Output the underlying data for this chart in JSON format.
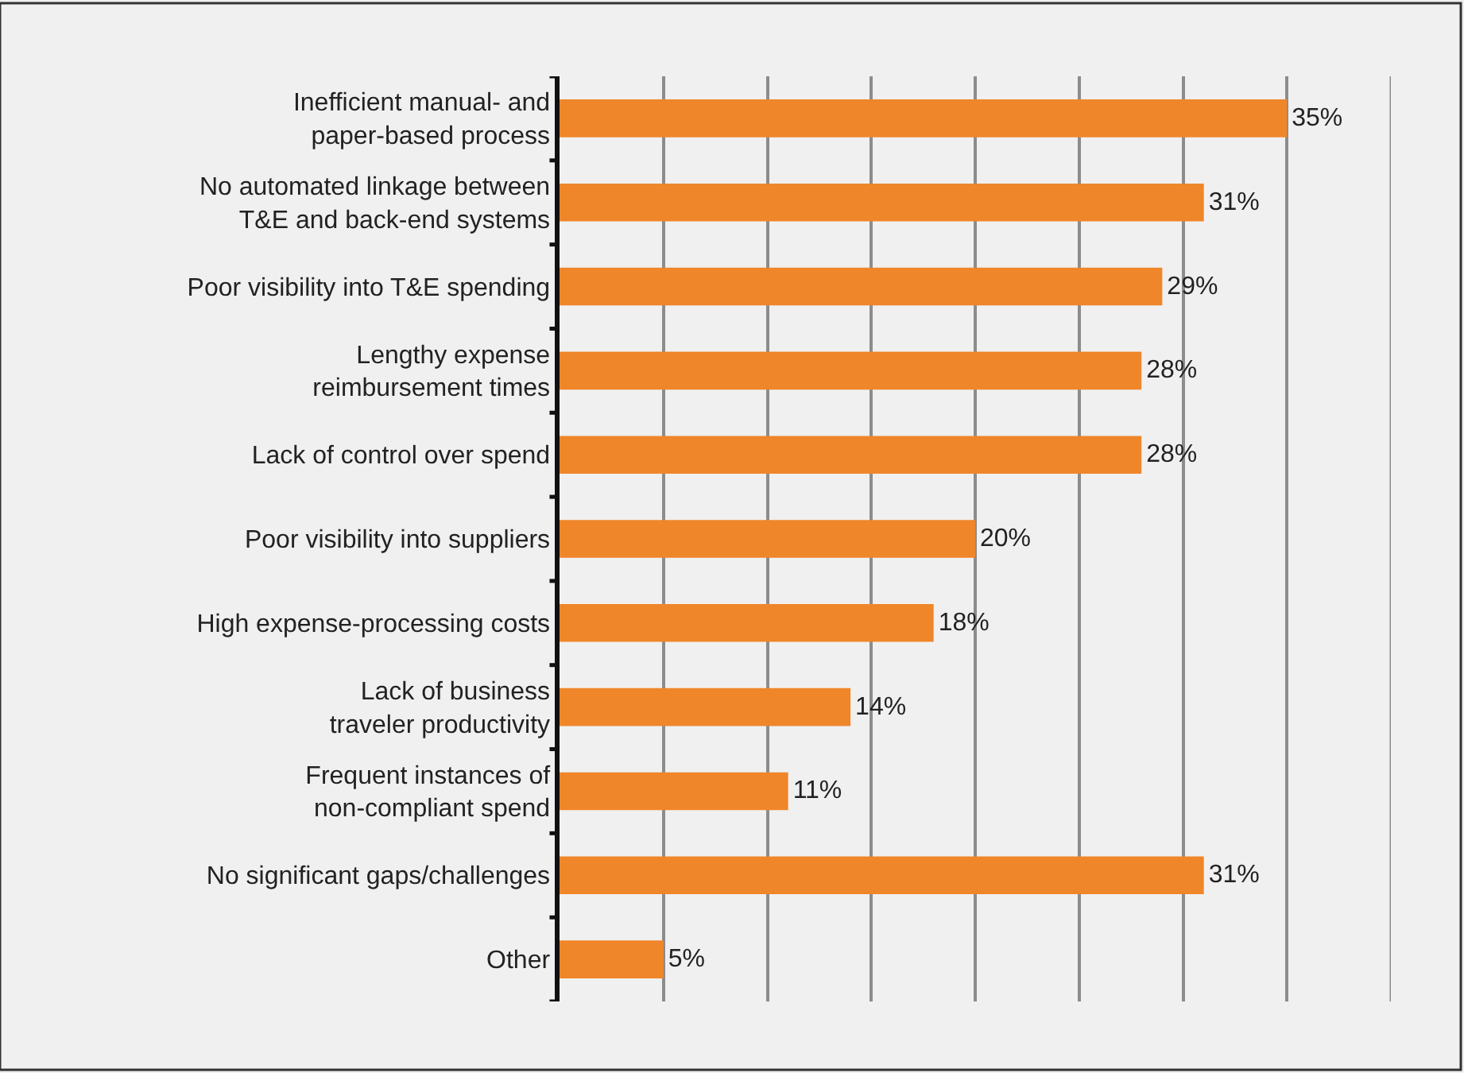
{
  "chart_data": {
    "type": "bar",
    "orientation": "horizontal",
    "categories": [
      "Inefficient manual- and\npaper-based process",
      "No automated linkage between\nT&E and back-end systems",
      "Poor visibility into T&E spending",
      "Lengthy expense\nreimbursement times",
      "Lack of control over spend",
      "Poor visibility into suppliers",
      "High expense-processing costs",
      "Lack of business\ntraveler productivity",
      "Frequent instances of\nnon-compliant spend",
      "No significant gaps/challenges",
      "Other"
    ],
    "values": [
      35,
      31,
      29,
      28,
      28,
      20,
      18,
      14,
      11,
      31,
      5
    ],
    "value_labels": [
      "35%",
      "31%",
      "29%",
      "28%",
      "28%",
      "20%",
      "18%",
      "14%",
      "11%",
      "31%",
      "5%"
    ],
    "color": "#f0862a",
    "xlim": [
      0,
      40
    ],
    "xticks": [
      {
        "value": 0,
        "label": null
      },
      {
        "value": 5,
        "label": null
      },
      {
        "value": 10,
        "label": null
      },
      {
        "value": 15,
        "label": null
      },
      {
        "value": 20,
        "label": null
      },
      {
        "value": 25,
        "label": null
      },
      {
        "value": 30,
        "label": null
      },
      {
        "value": 35,
        "label": null
      },
      {
        "value": 40,
        "label": null
      }
    ],
    "grid": "x",
    "tick_labels": "y"
  }
}
